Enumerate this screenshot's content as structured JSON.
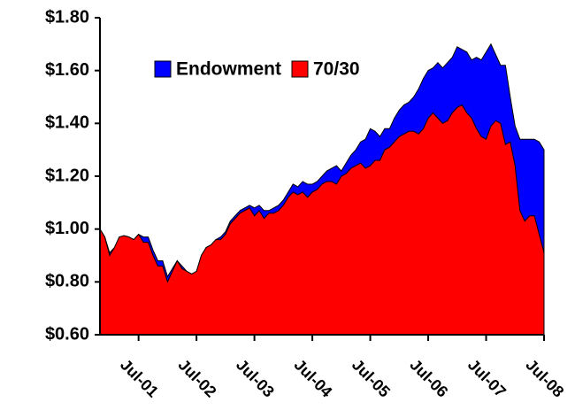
{
  "chart_data": {
    "type": "area",
    "categories": [
      null,
      null,
      null,
      null,
      null,
      null,
      null,
      null,
      "Jul-01",
      null,
      null,
      null,
      null,
      null,
      null,
      null,
      null,
      null,
      null,
      null,
      "Jul-02",
      null,
      null,
      null,
      null,
      null,
      null,
      null,
      null,
      null,
      null,
      null,
      "Jul-03",
      null,
      null,
      null,
      null,
      null,
      null,
      null,
      null,
      null,
      null,
      null,
      "Jul-04",
      null,
      null,
      null,
      null,
      null,
      null,
      null,
      null,
      null,
      null,
      null,
      "Jul-05",
      null,
      null,
      null,
      null,
      null,
      null,
      null,
      null,
      null,
      null,
      null,
      "Jul-06",
      null,
      null,
      null,
      null,
      null,
      null,
      null,
      null,
      null,
      null,
      null,
      "Jul-07",
      null,
      null,
      null,
      null,
      null,
      null,
      null,
      null,
      null,
      null,
      null,
      "Jul-08"
    ],
    "series": [
      {
        "name": "Endowment",
        "color": "#0000ff",
        "values": [
          1.0,
          0.97,
          0.91,
          0.93,
          0.97,
          0.975,
          0.97,
          0.96,
          0.98,
          0.97,
          0.97,
          0.92,
          0.88,
          0.88,
          0.82,
          0.85,
          0.88,
          0.86,
          0.84,
          0.83,
          0.84,
          0.9,
          0.93,
          0.94,
          0.96,
          0.97,
          0.99,
          1.03,
          1.05,
          1.07,
          1.08,
          1.09,
          1.08,
          1.09,
          1.07,
          1.07,
          1.08,
          1.09,
          1.11,
          1.14,
          1.17,
          1.16,
          1.18,
          1.17,
          1.17,
          1.18,
          1.2,
          1.22,
          1.23,
          1.24,
          1.22,
          1.25,
          1.28,
          1.3,
          1.33,
          1.34,
          1.38,
          1.37,
          1.35,
          1.38,
          1.38,
          1.42,
          1.45,
          1.47,
          1.48,
          1.5,
          1.53,
          1.57,
          1.6,
          1.61,
          1.63,
          1.61,
          1.63,
          1.65,
          1.69,
          1.68,
          1.67,
          1.64,
          1.65,
          1.64,
          1.67,
          1.7,
          1.66,
          1.62,
          1.62,
          1.5,
          1.39,
          1.34,
          1.34,
          1.34,
          1.34,
          1.33,
          1.3
        ]
      },
      {
        "name": "70/30",
        "color": "#ff0000",
        "values": [
          1.0,
          0.97,
          0.9,
          0.93,
          0.97,
          0.975,
          0.97,
          0.96,
          0.98,
          0.95,
          0.95,
          0.9,
          0.86,
          0.86,
          0.8,
          0.84,
          0.88,
          0.85,
          0.84,
          0.83,
          0.84,
          0.9,
          0.93,
          0.94,
          0.96,
          0.96,
          0.98,
          1.02,
          1.04,
          1.06,
          1.07,
          1.08,
          1.05,
          1.07,
          1.04,
          1.06,
          1.06,
          1.07,
          1.09,
          1.12,
          1.14,
          1.13,
          1.14,
          1.12,
          1.14,
          1.15,
          1.17,
          1.18,
          1.18,
          1.17,
          1.2,
          1.21,
          1.23,
          1.24,
          1.25,
          1.23,
          1.24,
          1.26,
          1.26,
          1.3,
          1.31,
          1.33,
          1.35,
          1.36,
          1.37,
          1.37,
          1.36,
          1.38,
          1.42,
          1.44,
          1.42,
          1.4,
          1.41,
          1.44,
          1.46,
          1.47,
          1.44,
          1.42,
          1.38,
          1.35,
          1.34,
          1.39,
          1.41,
          1.4,
          1.32,
          1.33,
          1.24,
          1.07,
          1.03,
          1.05,
          1.05,
          0.98,
          0.91
        ]
      }
    ],
    "ylim": [
      0.6,
      1.8
    ],
    "yticks": [
      {
        "value": 0.6,
        "label": "$0.60"
      },
      {
        "value": 0.8,
        "label": "$0.80"
      },
      {
        "value": 1.0,
        "label": "$1.00"
      },
      {
        "value": 1.2,
        "label": "$1.20"
      },
      {
        "value": 1.4,
        "label": "$1.40"
      },
      {
        "value": 1.6,
        "label": "$1.60"
      },
      {
        "value": 1.8,
        "label": "$1.80"
      }
    ],
    "legend": "upper-left"
  }
}
